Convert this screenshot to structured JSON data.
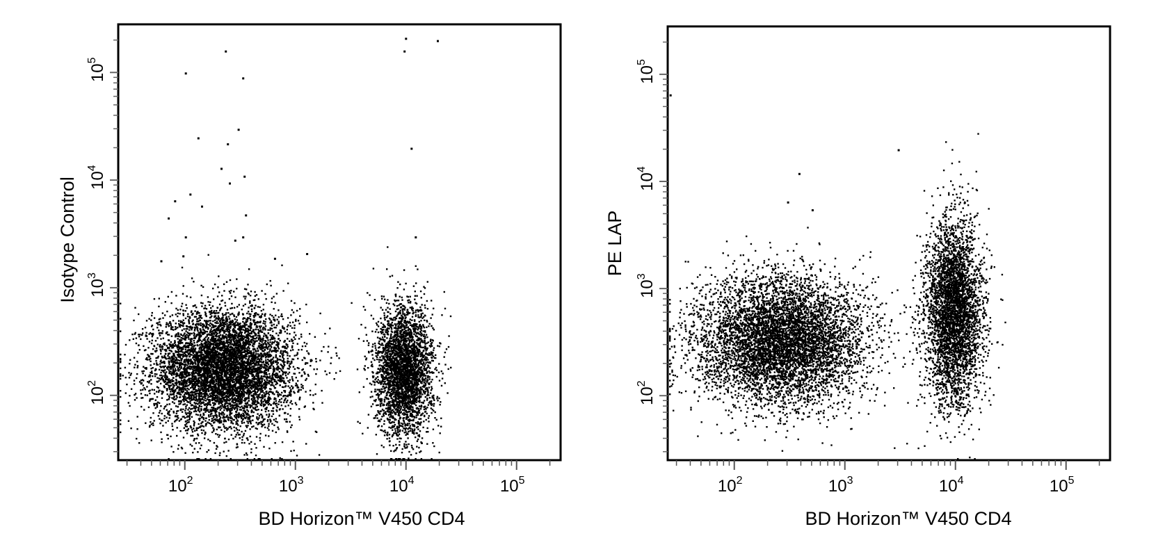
{
  "chart_data": [
    {
      "type": "scatter",
      "title": "",
      "xlabel": "BD Horizon™ V450  CD4",
      "ylabel": "Isotype Control",
      "xscale": "log",
      "yscale": "log",
      "xlim": [
        25,
        250000
      ],
      "ylim": [
        25,
        280000
      ],
      "xticks": [
        {
          "value": 100,
          "label": "10",
          "exp": "2"
        },
        {
          "value": 1000,
          "label": "10",
          "exp": "3"
        },
        {
          "value": 10000,
          "label": "10",
          "exp": "4"
        },
        {
          "value": 100000,
          "label": "10",
          "exp": "5"
        }
      ],
      "yticks": [
        {
          "value": 100,
          "label": "10",
          "exp": "2"
        },
        {
          "value": 1000,
          "label": "10",
          "exp": "3"
        },
        {
          "value": 10000,
          "label": "10",
          "exp": "4"
        },
        {
          "value": 100000,
          "label": "10",
          "exp": "5"
        }
      ],
      "grid": false,
      "populations": [
        {
          "name": "",
          "center": [
            220,
            180
          ],
          "spread": [
            0.32,
            0.28
          ],
          "count": 6500
        },
        {
          "name": "",
          "center": [
            9500,
            170
          ],
          "spread": [
            0.13,
            0.3
          ],
          "count": 3200
        }
      ],
      "outliers": [
        [
          100,
          100000
        ],
        [
          230,
          160000
        ],
        [
          330,
          90000
        ],
        [
          130,
          25000
        ],
        [
          240,
          22000
        ],
        [
          300,
          30000
        ],
        [
          210,
          13000
        ],
        [
          250,
          9500
        ],
        [
          340,
          11000
        ],
        [
          80,
          6500
        ],
        [
          110,
          7500
        ],
        [
          140,
          5800
        ],
        [
          70,
          4500
        ],
        [
          100,
          3000
        ],
        [
          280,
          2800
        ],
        [
          330,
          3000
        ],
        [
          350,
          4800
        ],
        [
          9500,
          160000
        ],
        [
          9800,
          210000
        ],
        [
          19000,
          200000
        ],
        [
          11000,
          20000
        ],
        [
          12000,
          3000
        ],
        [
          640,
          1900
        ],
        [
          60,
          1800
        ],
        [
          1250,
          2100
        ],
        [
          95,
          2000
        ]
      ]
    },
    {
      "type": "scatter",
      "title": "",
      "xlabel": "BD Horizon™ V450  CD4",
      "ylabel": "PE  LAP",
      "xscale": "log",
      "yscale": "log",
      "xlim": [
        25,
        250000
      ],
      "ylim": [
        25,
        280000
      ],
      "xticks": [
        {
          "value": 100,
          "label": "10",
          "exp": "2"
        },
        {
          "value": 1000,
          "label": "10",
          "exp": "3"
        },
        {
          "value": 10000,
          "label": "10",
          "exp": "4"
        },
        {
          "value": 100000,
          "label": "10",
          "exp": "5"
        }
      ],
      "yticks": [
        {
          "value": 100,
          "label": "10",
          "exp": "2"
        },
        {
          "value": 1000,
          "label": "10",
          "exp": "3"
        },
        {
          "value": 10000,
          "label": "10",
          "exp": "4"
        },
        {
          "value": 100000,
          "label": "10",
          "exp": "5"
        }
      ],
      "grid": false,
      "populations": [
        {
          "name": "",
          "center": [
            260,
            330
          ],
          "spread": [
            0.38,
            0.3
          ],
          "count": 6000
        },
        {
          "name": "",
          "center": [
            9500,
            600
          ],
          "spread": [
            0.13,
            0.42
          ],
          "count": 3800
        }
      ],
      "outliers": [
        [
          3000,
          20000
        ],
        [
          380,
          12000
        ],
        [
          300,
          6500
        ],
        [
          500,
          5500
        ],
        [
          26,
          65000
        ]
      ]
    }
  ]
}
